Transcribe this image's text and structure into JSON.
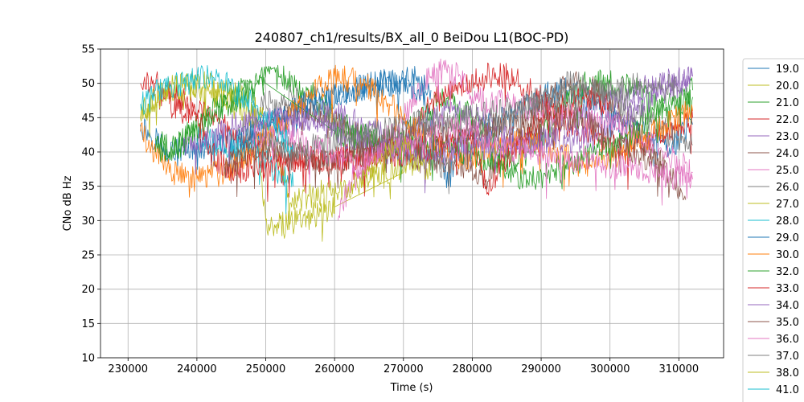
{
  "chart_data": {
    "type": "line",
    "title": "240807_ch1/results/BX_all_0 BeiDou L1(BOC-PD)",
    "xlabel": "Time (s)",
    "ylabel": "CNo dB Hz",
    "xlim": [
      226000,
      316500
    ],
    "ylim": [
      10,
      55
    ],
    "xticks": [
      230000,
      240000,
      250000,
      260000,
      270000,
      280000,
      290000,
      300000,
      310000
    ],
    "yticks": [
      10,
      15,
      20,
      25,
      30,
      35,
      40,
      45,
      50,
      55
    ],
    "grid": true,
    "legend_position": "right-outside",
    "series": [
      {
        "name": "19.0",
        "color": "#1f77b4",
        "x": [
          231800,
          236000,
          242000,
          248000,
          254000,
          260000,
          266000,
          272000,
          276500,
          278000,
          282000,
          286000,
          290000,
          294000,
          298000,
          302000,
          306000,
          309000,
          312000
        ],
        "y": [
          44,
          40,
          41,
          42,
          45,
          48,
          50,
          51,
          35,
          42,
          44,
          45,
          48,
          49,
          47,
          44,
          42,
          41,
          44
        ]
      },
      {
        "name": "20.0",
        "color": "#bcbd22",
        "x": [
          231800,
          234000,
          238000,
          242000,
          246000,
          248500,
          250000,
          250200,
          260000,
          270000,
          272000
        ],
        "y": [
          45,
          48,
          50,
          49,
          47,
          45,
          30,
          28.5,
          32,
          37,
          39
        ]
      },
      {
        "name": "21.0",
        "color": "#2ca02c",
        "x": [
          234000,
          236000,
          240000,
          244000,
          248000,
          252000,
          256000,
          260000,
          264000,
          268000,
          272000,
          276000,
          280000,
          284000,
          286000,
          288000,
          292000,
          296000,
          300000,
          304000,
          308000,
          312000
        ],
        "y": [
          42,
          40,
          43,
          48,
          50,
          51,
          49,
          45,
          42,
          41,
          44,
          48,
          45,
          40,
          38,
          40,
          45,
          50,
          50,
          49,
          46,
          48
        ]
      },
      {
        "name": "22.0",
        "color": "#d62728",
        "x": [
          231800,
          234000,
          238000,
          242000,
          246000,
          250000,
          260000,
          266000,
          270000,
          274000,
          278000,
          282000,
          286000,
          290000,
          294000,
          298000,
          302000,
          306000,
          310000,
          312000
        ],
        "y": [
          50,
          50,
          48,
          45,
          42,
          39,
          39,
          40,
          42,
          47,
          50,
          51,
          51,
          48,
          44,
          42,
          40,
          42,
          44,
          45
        ]
      },
      {
        "name": "23.0",
        "color": "#9467bd",
        "x": [
          252000,
          256000,
          260000,
          264000,
          268000,
          272000,
          276000,
          280000,
          284000,
          288000,
          292000,
          296000,
          300000,
          304000,
          308000,
          312000
        ],
        "y": [
          44,
          45,
          46,
          44,
          42,
          44,
          46,
          45,
          43,
          41,
          43,
          45,
          47,
          49,
          50,
          51
        ]
      },
      {
        "name": "24.0",
        "color": "#8c564b",
        "x": [
          244000,
          248000,
          252000,
          256000,
          260000,
          268000,
          274000,
          278000,
          282000,
          286000,
          290000,
          294000,
          298000,
          302000,
          306000,
          310000,
          311000
        ],
        "y": [
          38,
          42,
          45,
          46,
          44,
          40,
          39,
          38,
          36,
          42,
          47,
          50,
          49,
          45,
          40,
          35,
          33
        ]
      },
      {
        "name": "25.0",
        "color": "#e377c2",
        "x": [
          260500,
          262000,
          266000,
          270000,
          272000,
          274000,
          276000,
          278000,
          280000,
          300000,
          304000,
          308000,
          312000
        ],
        "y": [
          30,
          35,
          40,
          45,
          49,
          51,
          52,
          51,
          48,
          44,
          42,
          40,
          37
        ]
      },
      {
        "name": "26.0",
        "color": "#7f7f7f",
        "x": [
          246000,
          250000,
          254000,
          258000,
          262000,
          266000,
          270000,
          276000,
          282000,
          286000,
          290000,
          294000,
          298000,
          302000,
          306000,
          310000,
          312000
        ],
        "y": [
          43,
          47,
          48,
          46,
          43,
          41,
          40,
          38,
          42,
          46,
          48,
          50,
          49,
          47,
          44,
          42,
          41
        ]
      },
      {
        "name": "27.0",
        "color": "#bcbd22",
        "x": [
          231800,
          233000,
          236000,
          240000,
          244000,
          248000,
          250000,
          254000,
          262000,
          270000
        ],
        "y": [
          45,
          47,
          49,
          50,
          49,
          47,
          44,
          33,
          35,
          38
        ]
      },
      {
        "name": "28.0",
        "color": "#17becf",
        "x": [
          240000,
          244000,
          248000,
          252000,
          254000
        ],
        "y": [
          42,
          41,
          40,
          37,
          35
        ]
      },
      {
        "name": "29.0",
        "color": "#1f77b4",
        "x": [
          246000,
          250000,
          254000,
          258000,
          262000,
          266000,
          270000,
          274000
        ],
        "y": [
          42,
          44,
          46,
          48,
          49,
          50,
          50,
          49
        ]
      },
      {
        "name": "30.0",
        "color": "#ff7f0e",
        "x": [
          231800,
          234000,
          236000,
          240000,
          244000,
          248000,
          252000,
          256000,
          260000,
          264000,
          268000,
          272000,
          276000,
          280000,
          284000,
          288000,
          292000,
          296000,
          300000,
          304000,
          308000,
          312000
        ],
        "y": [
          43,
          40,
          37,
          36,
          37,
          40,
          44,
          48,
          51,
          50,
          47,
          43,
          40,
          39,
          41,
          42,
          40,
          38,
          39,
          42,
          44,
          46
        ]
      },
      {
        "name": "32.0",
        "color": "#2ca02c",
        "x": [
          234000,
          238000,
          242000,
          246000,
          250000,
          260000,
          270000,
          280000,
          288000,
          294000,
          298000,
          302000,
          306000,
          310000,
          312000
        ],
        "y": [
          40,
          42,
          45,
          48,
          50,
          43,
          41,
          40,
          36,
          38,
          40,
          42,
          45,
          48,
          49
        ]
      },
      {
        "name": "33.0",
        "color": "#d62728",
        "x": [
          236000,
          240000,
          242000,
          244000,
          246000,
          248000,
          260000,
          270000,
          276000,
          280000,
          282000,
          286000,
          290000,
          296000,
          300000
        ],
        "y": [
          47,
          45,
          40,
          38,
          37,
          38,
          39,
          40,
          41,
          42,
          35,
          40,
          45,
          48,
          47
        ]
      },
      {
        "name": "34.0",
        "color": "#9467bd",
        "x": [
          238000,
          242000,
          246000,
          250000,
          254000,
          258000,
          262000,
          266000,
          270000,
          298000,
          302000,
          306000,
          310000,
          312000
        ],
        "y": [
          40,
          42,
          44,
          45,
          46,
          44,
          42,
          41,
          40,
          42,
          45,
          48,
          50,
          51
        ]
      },
      {
        "name": "35.0",
        "color": "#8c564b",
        "x": [
          244000,
          248000,
          252000,
          256000,
          260000,
          264000,
          268000,
          296000,
          300000,
          304000,
          308000
        ],
        "y": [
          38,
          40,
          41,
          39,
          38,
          40,
          42,
          45,
          42,
          40,
          38
        ]
      },
      {
        "name": "36.0",
        "color": "#e377c2",
        "x": [
          248000,
          252000,
          256000,
          260000,
          264000,
          268000,
          272000,
          276000,
          280000,
          284000,
          288000,
          312000
        ],
        "y": [
          42,
          43,
          41,
          40,
          38,
          40,
          42,
          44,
          43,
          41,
          40,
          36
        ]
      },
      {
        "name": "37.0",
        "color": "#7f7f7f",
        "x": [
          250000,
          254000,
          258000,
          262000,
          266000,
          270000,
          280000,
          290000,
          300000,
          306000,
          310000
        ],
        "y": [
          42,
          40,
          41,
          42,
          43,
          44,
          45,
          47,
          49,
          50,
          49
        ]
      },
      {
        "name": "38.0",
        "color": "#bcbd22",
        "x": [
          264000,
          266000,
          268000,
          270000,
          272000,
          274000
        ],
        "y": [
          36,
          38,
          40,
          41,
          39,
          37
        ]
      },
      {
        "name": "41.0",
        "color": "#17becf",
        "x": [
          231800,
          234000,
          238000,
          242000,
          244000,
          248000,
          252000,
          254000
        ],
        "y": [
          47,
          49,
          50,
          51,
          50,
          47,
          43,
          40
        ]
      }
    ]
  }
}
